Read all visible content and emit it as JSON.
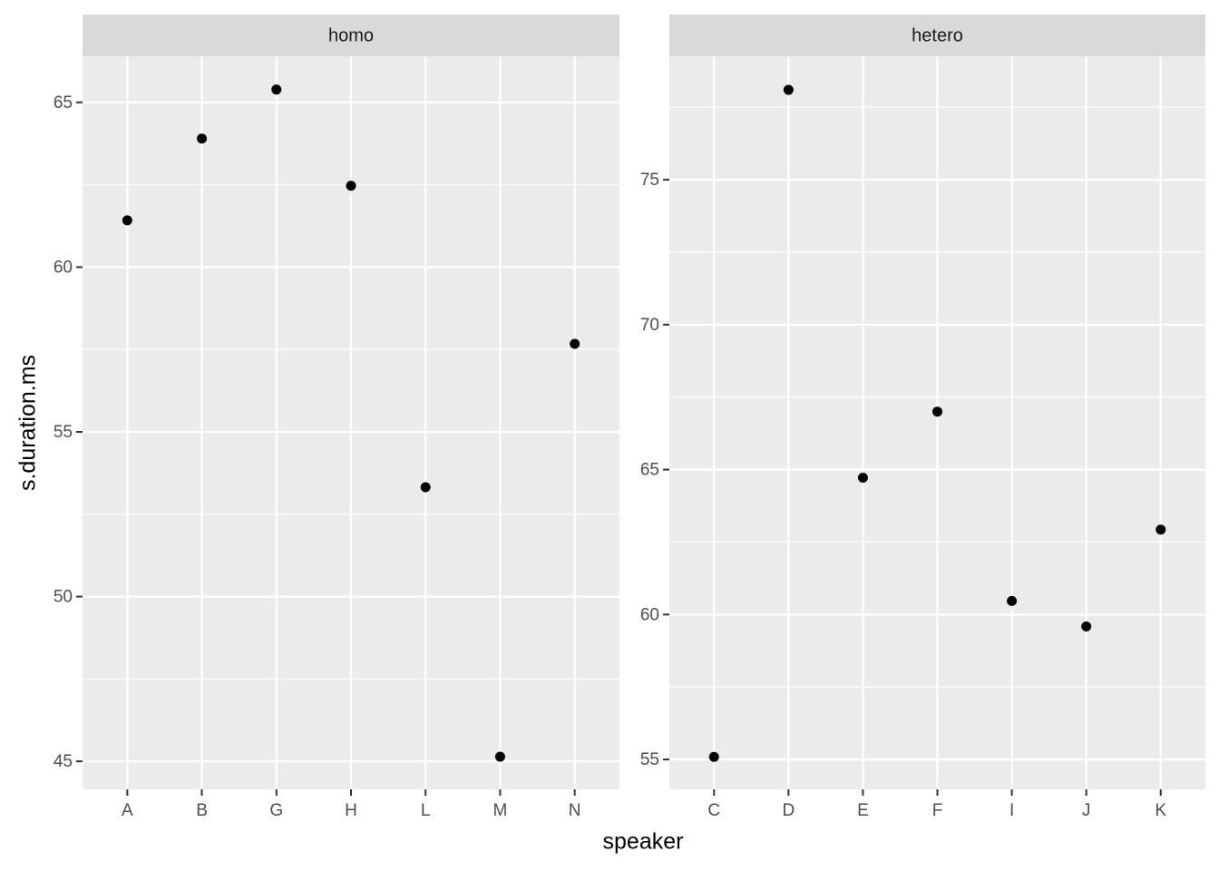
{
  "chart_data": [
    {
      "type": "scatter",
      "title": "homo",
      "categories": [
        "A",
        "B",
        "G",
        "H",
        "L",
        "M",
        "N"
      ],
      "values": [
        61.42,
        63.9,
        65.39,
        62.47,
        53.32,
        45.14,
        57.67
      ],
      "color": "#000000",
      "ylim": [
        44.15,
        66.4
      ],
      "yticks": [
        45,
        50,
        55,
        60,
        65
      ],
      "minor_yticks": [
        47.5,
        52.5,
        57.5,
        62.5
      ],
      "grid": true
    },
    {
      "type": "scatter",
      "title": "hetero",
      "categories": [
        "C",
        "D",
        "E",
        "F",
        "I",
        "J",
        "K"
      ],
      "values": [
        55.09,
        78.1,
        64.72,
        67.0,
        60.47,
        59.59,
        62.93
      ],
      "color": "#000000",
      "ylim": [
        53.97,
        79.26
      ],
      "yticks": [
        55,
        60,
        65,
        70,
        75
      ],
      "minor_yticks": [
        57.5,
        62.5,
        67.5,
        72.5,
        77.5
      ],
      "grid": true
    }
  ],
  "xlabel": "speaker",
  "ylabel": "s.duration.ms"
}
